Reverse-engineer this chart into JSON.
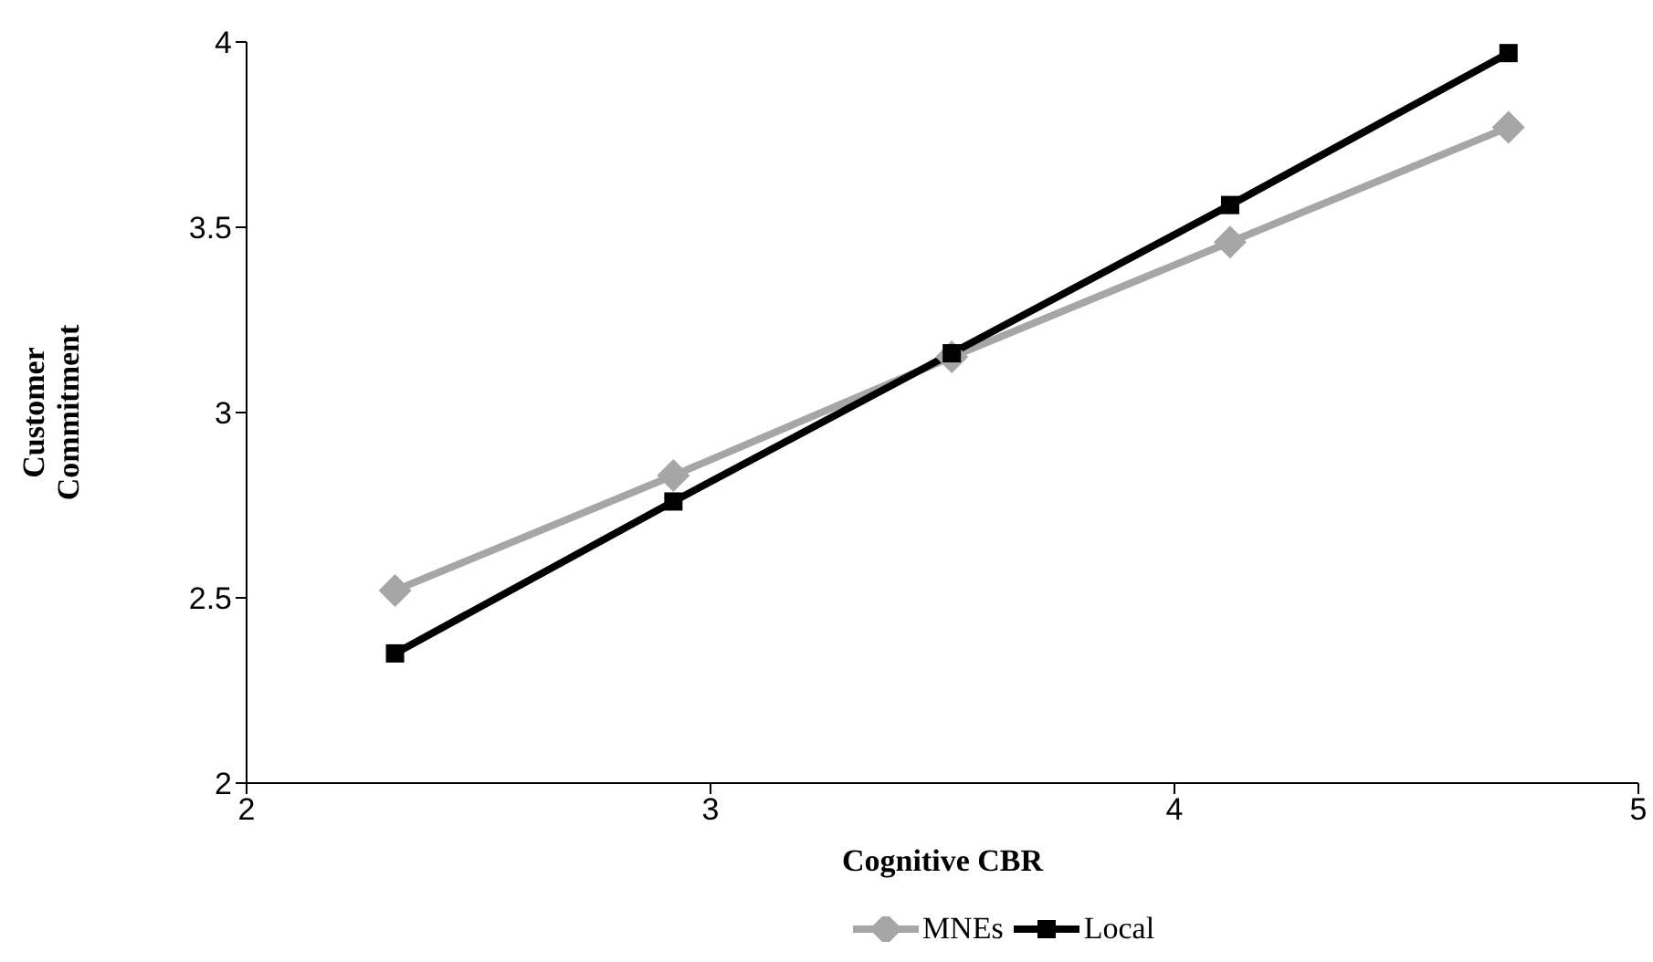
{
  "chart_data": {
    "type": "line",
    "xlabel": "Cognitive CBR",
    "ylabel": "Customer Commitment",
    "xlim": [
      2,
      5
    ],
    "xticks": [
      2,
      3,
      4,
      5
    ],
    "ylim": [
      2,
      4
    ],
    "yticks": [
      2,
      2.5,
      3,
      3.5,
      4
    ],
    "grid": false,
    "legend": "bottom",
    "line_style": "solid",
    "series": [
      {
        "name": "MNEs",
        "color": "#a6a6a6",
        "marker": "diamond",
        "x": [
          2.32,
          2.92,
          3.52,
          4.12,
          4.72
        ],
        "values": [
          2.52,
          2.83,
          3.15,
          3.46,
          3.77
        ]
      },
      {
        "name": "Local",
        "color": "#000000",
        "marker": "square",
        "x": [
          2.32,
          2.92,
          3.52,
          4.12,
          4.72
        ],
        "values": [
          2.35,
          2.76,
          3.16,
          3.56,
          3.97
        ]
      }
    ]
  }
}
